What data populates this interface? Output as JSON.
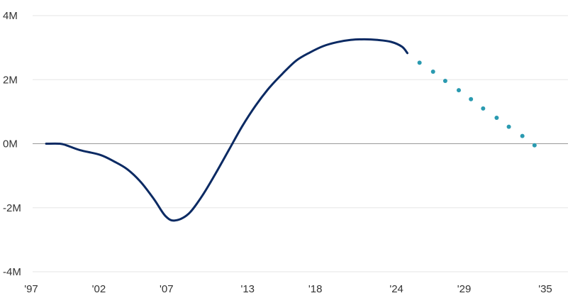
{
  "chart_data": {
    "type": "line",
    "title": "",
    "xlabel": "",
    "ylabel": "",
    "xlim": [
      1997,
      2035
    ],
    "ylim": [
      -4,
      4
    ],
    "x_ticks": [
      1997,
      2002,
      2007,
      2013,
      2018,
      2024,
      2029,
      2035
    ],
    "x_tick_labels": [
      "'97",
      "'02",
      "'07",
      "'13",
      "'18",
      "'24",
      "'29",
      "'35"
    ],
    "y_ticks": [
      4,
      2,
      0,
      -2,
      -4
    ],
    "y_tick_labels": [
      "4M",
      "2M",
      "0M",
      "-2M",
      "-4M"
    ],
    "grid": true,
    "series": [
      {
        "style": "solid",
        "color": "#0b2a63",
        "x": [
          1998.0,
          1999.0,
          1999.5,
          2000.5,
          2002.0,
          2003.0,
          2004.0,
          2005.0,
          2006.0,
          2006.8,
          2007.5,
          2008.5,
          2009.5,
          2010.5,
          2011.5,
          2012.5,
          2013.5,
          2014.5,
          2015.5,
          2016.5,
          2017.5,
          2018.5,
          2019.5,
          2020.5,
          2021.5,
          2022.5,
          2023.5,
          2024.3,
          2024.7
        ],
        "y": [
          0.0,
          0.0,
          -0.05,
          -0.2,
          -0.35,
          -0.55,
          -0.8,
          -1.2,
          -1.75,
          -2.25,
          -2.4,
          -2.2,
          -1.65,
          -0.95,
          -0.2,
          0.55,
          1.2,
          1.75,
          2.2,
          2.6,
          2.85,
          3.05,
          3.17,
          3.24,
          3.26,
          3.24,
          3.18,
          3.03,
          2.83
        ]
      },
      {
        "style": "dotted",
        "color": "#2a9ab0",
        "x": [
          2025.6,
          2026.6,
          2027.5,
          2028.5,
          2029.4,
          2030.3,
          2031.3,
          2032.2,
          2033.2,
          2034.1
        ],
        "y": [
          2.53,
          2.25,
          1.96,
          1.67,
          1.39,
          1.1,
          0.81,
          0.53,
          0.24,
          -0.05
        ]
      }
    ]
  }
}
